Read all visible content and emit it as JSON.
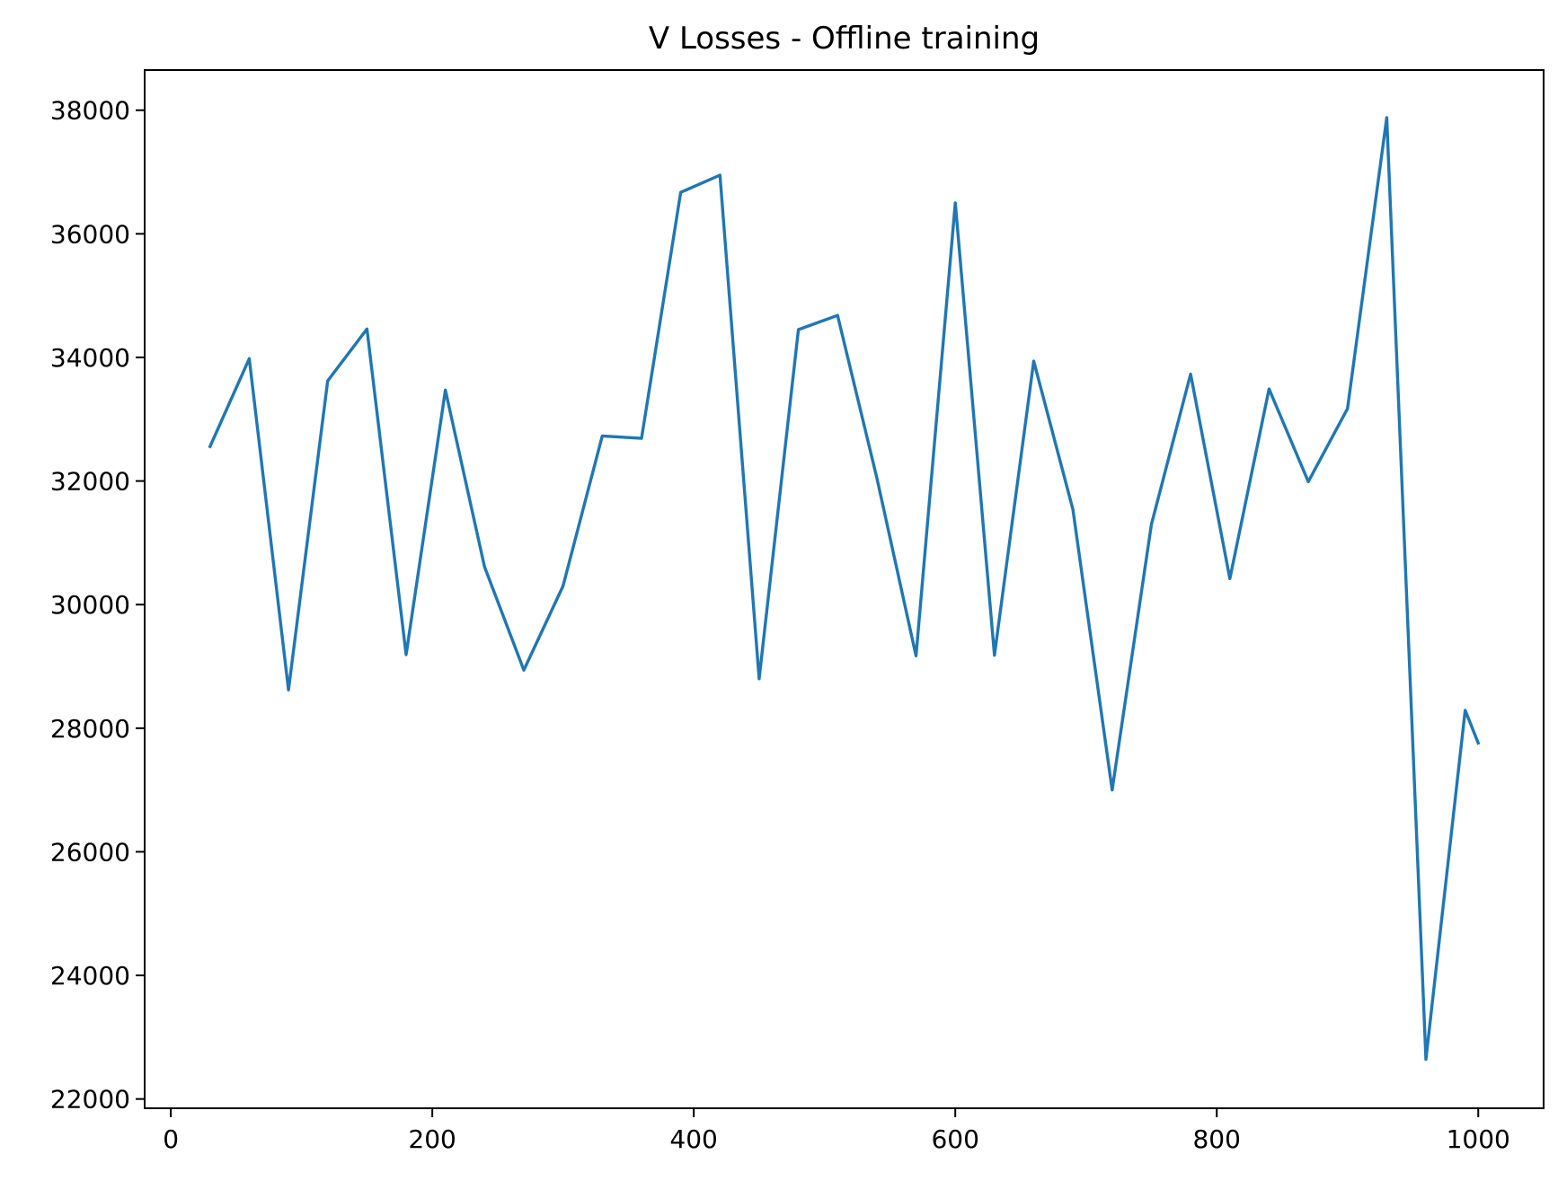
{
  "chart_data": {
    "type": "line",
    "title": "V Losses - Offline training",
    "xlabel": "",
    "ylabel": "",
    "xlim": [
      -20,
      1050
    ],
    "ylim": [
      21850,
      38650
    ],
    "xticks": [
      0,
      200,
      400,
      600,
      800,
      1000
    ],
    "yticks": [
      22000,
      24000,
      26000,
      28000,
      30000,
      32000,
      34000,
      36000,
      38000
    ],
    "grid": false,
    "colors": {
      "line": "#1f77b4",
      "axes": "#000000",
      "background": "#ffffff"
    },
    "series": [
      {
        "x": [
          30,
          60,
          90,
          120,
          150,
          180,
          210,
          240,
          270,
          300,
          330,
          360,
          390,
          420,
          450,
          480,
          510,
          540,
          570,
          600,
          630,
          660,
          690,
          720,
          750,
          780,
          810,
          840,
          870,
          900,
          930,
          960,
          990,
          1000
        ],
        "values": [
          32560,
          33980,
          28620,
          33620,
          34460,
          29190,
          33470,
          30610,
          28940,
          30300,
          32730,
          32690,
          36670,
          36950,
          28800,
          34450,
          34680,
          32050,
          29170,
          36500,
          29180,
          33940,
          31540,
          27000,
          31300,
          33730,
          30420,
          33490,
          31990,
          33170,
          37880,
          22640,
          28290,
          27760
        ]
      }
    ]
  }
}
